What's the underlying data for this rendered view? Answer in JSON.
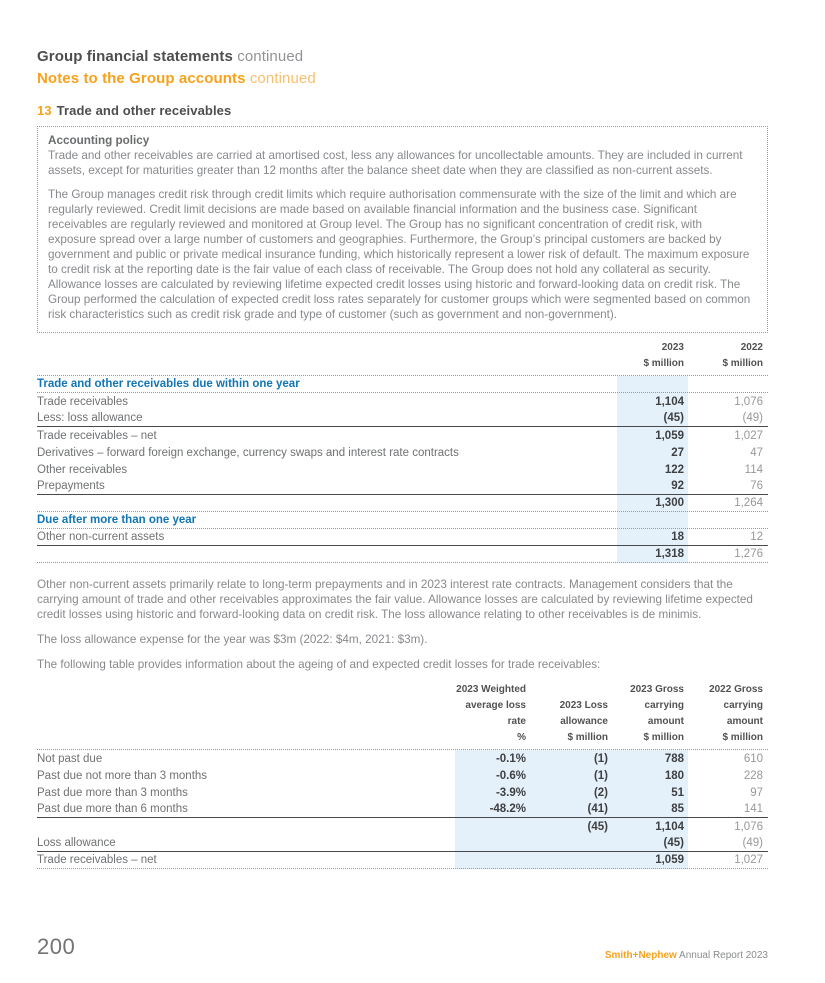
{
  "header": {
    "line1_bold": "Group financial statements",
    "line1_rest": " continued",
    "line2_bold": "Notes to the Group accounts",
    "line2_rest": " continued"
  },
  "section": {
    "number": "13",
    "title": "Trade and other receivables"
  },
  "policy_box": {
    "heading": "Accounting policy",
    "para1": "Trade and other receivables are carried at amortised cost, less any allowances for uncollectable amounts. They are included in current assets, except for maturities greater than 12 months after the balance sheet date when they are classified as non-current assets.",
    "para2": "The Group manages credit risk through credit limits which require authorisation commensurate with the size of the limit and which are regularly reviewed. Credit limit decisions are made based on available financial information and the business case. Significant receivables are regularly reviewed and monitored at Group level. The Group has no significant concentration of credit risk, with exposure spread over a large number of customers and geographies. Furthermore, the Group’s principal customers are backed by government and public or private medical insurance funding, which historically represent a lower risk of default. The maximum exposure to credit risk at the reporting date is the fair value of each class of receivable. The Group does not hold any collateral as security. Allowance losses are calculated by reviewing lifetime expected credit losses using historic and forward-looking data on credit risk. The Group performed the calculation of expected credit loss rates separately for customer groups which were segmented based on common risk characteristics such as credit risk grade and type of customer (such as government and non-government)."
  },
  "table1": {
    "headers": {
      "c2023": "2023\n$ million",
      "c2022": "2022\n$ million"
    },
    "section1": "Trade and other receivables due within one year",
    "rows1": [
      {
        "label": "Trade receivables",
        "v2023": "1,104",
        "v2022": "1,076"
      },
      {
        "label": "Less: loss allowance",
        "v2023": "(45)",
        "v2022": "(49)"
      },
      {
        "label": "Trade receivables – net",
        "v2023": "1,059",
        "v2022": "1,027"
      },
      {
        "label": "Derivatives – forward foreign exchange, currency swaps and interest rate contracts",
        "v2023": "27",
        "v2022": "47"
      },
      {
        "label": "Other receivables",
        "v2023": "122",
        "v2022": "114"
      },
      {
        "label": "Prepayments",
        "v2023": "92",
        "v2022": "76"
      },
      {
        "label": "",
        "v2023": "1,300",
        "v2022": "1,264"
      }
    ],
    "section2": "Due after more than one year",
    "rows2": [
      {
        "label": "Other non-current assets",
        "v2023": "18",
        "v2022": "12"
      },
      {
        "label": "",
        "v2023": "1,318",
        "v2022": "1,276"
      }
    ]
  },
  "paragraphs": {
    "p1": "Other non-current assets primarily relate to long-term prepayments and in 2023 interest rate contracts. Management considers that the carrying amount of trade and other receivables approximates the fair value. Allowance losses are calculated by reviewing lifetime expected credit losses using historic and forward-looking data on credit risk. The loss allowance relating to other receivables is de minimis.",
    "p2": "The loss allowance expense for the year was $3m (2022: $4m, 2021: $3m).",
    "p3": "The following table provides information about the ageing of and expected credit losses for trade receivables:"
  },
  "table2": {
    "headers": {
      "c1": "2023 Weighted\naverage loss\nrate\n%",
      "c2": "2023 Loss\nallowance\n$ million",
      "c3": "2023 Gross\ncarrying\namount\n$ million",
      "c4": "2022 Gross\ncarrying\namount\n$ million"
    },
    "rows": [
      {
        "label": "Not past due",
        "rate": "-0.1%",
        "allowance": "(1)",
        "gross2023": "788",
        "gross2022": "610"
      },
      {
        "label": "Past due not more than 3 months",
        "rate": "-0.6%",
        "allowance": "(1)",
        "gross2023": "180",
        "gross2022": "228"
      },
      {
        "label": "Past due more than 3 months",
        "rate": "-3.9%",
        "allowance": "(2)",
        "gross2023": "51",
        "gross2022": "97"
      },
      {
        "label": "Past due more than 6 months",
        "rate": "-48.2%",
        "allowance": "(41)",
        "gross2023": "85",
        "gross2022": "141"
      },
      {
        "label": "",
        "rate": "",
        "allowance": "(45)",
        "gross2023": "1,104",
        "gross2022": "1,076"
      },
      {
        "label": "Loss allowance",
        "rate": "",
        "allowance": "",
        "gross2023": "(45)",
        "gross2022": "(49)"
      },
      {
        "label": "Trade receivables – net",
        "rate": "",
        "allowance": "",
        "gross2023": "1,059",
        "gross2022": "1,027"
      }
    ]
  },
  "footer": {
    "page_number": "200",
    "brand": "Smith+Nephew",
    "suffix": " Annual Report 2023"
  },
  "colors": {
    "orange": "#F6A21C",
    "blue": "#1276B4",
    "highlight": "#E4F0FA"
  }
}
